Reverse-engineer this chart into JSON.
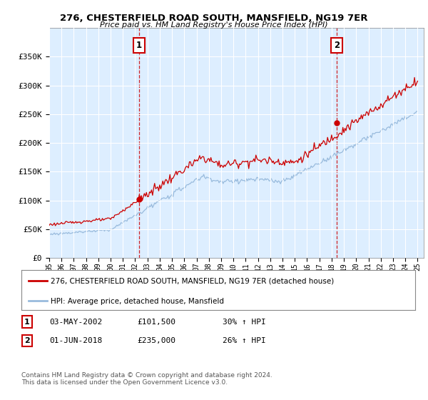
{
  "title": "276, CHESTERFIELD ROAD SOUTH, MANSFIELD, NG19 7ER",
  "subtitle": "Price paid vs. HM Land Registry's House Price Index (HPI)",
  "ylim": [
    0,
    400000
  ],
  "yticks": [
    0,
    50000,
    100000,
    150000,
    200000,
    250000,
    300000,
    350000
  ],
  "ytick_labels": [
    "£0",
    "£50K",
    "£100K",
    "£150K",
    "£200K",
    "£250K",
    "£300K",
    "£350K"
  ],
  "sale1_year": 2002.33,
  "sale1_price": 101500,
  "sale2_year": 2018.42,
  "sale2_price": 235000,
  "red_color": "#cc0000",
  "blue_color": "#99bbdd",
  "bg_fill": "#ddeeff",
  "legend_label_red": "276, CHESTERFIELD ROAD SOUTH, MANSFIELD, NG19 7ER (detached house)",
  "legend_label_blue": "HPI: Average price, detached house, Mansfield",
  "table_entries": [
    {
      "num": "1",
      "date": "03-MAY-2002",
      "price": "£101,500",
      "change": "30% ↑ HPI"
    },
    {
      "num": "2",
      "date": "01-JUN-2018",
      "price": "£235,000",
      "change": "26% ↑ HPI"
    }
  ],
  "footnote": "Contains HM Land Registry data © Crown copyright and database right 2024.\nThis data is licensed under the Open Government Licence v3.0.",
  "background_color": "#ffffff"
}
